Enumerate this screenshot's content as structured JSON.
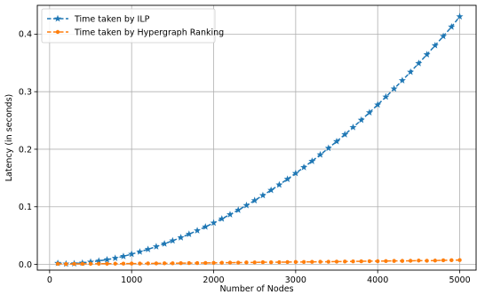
{
  "chart_data": {
    "type": "line",
    "title": "",
    "xlabel": "Number of Nodes",
    "ylabel": "Latency (in seconds)",
    "xlim": [
      -150,
      5200
    ],
    "ylim": [
      -0.01,
      0.45
    ],
    "xticks": [
      0,
      1000,
      2000,
      3000,
      4000,
      5000
    ],
    "yticks": [
      0.0,
      0.1,
      0.2,
      0.3,
      0.4
    ],
    "grid": true,
    "legend_position": "top-left",
    "x": [
      100,
      200,
      300,
      400,
      500,
      600,
      700,
      800,
      900,
      1000,
      1100,
      1200,
      1300,
      1400,
      1500,
      1600,
      1700,
      1800,
      1900,
      2000,
      2100,
      2200,
      2300,
      2400,
      2500,
      2600,
      2700,
      2800,
      2900,
      3000,
      3100,
      3200,
      3300,
      3400,
      3500,
      3600,
      3700,
      3800,
      3900,
      4000,
      4100,
      4200,
      4300,
      4400,
      4500,
      4600,
      4700,
      4800,
      4900,
      5000
    ],
    "series": [
      {
        "name": "Time taken by ILP",
        "color": "#1f77b4",
        "marker": "star",
        "values": [
          0.0021,
          0.001,
          0.0014,
          0.0025,
          0.0042,
          0.006,
          0.0082,
          0.0108,
          0.014,
          0.0178,
          0.0218,
          0.0262,
          0.0309,
          0.0358,
          0.0411,
          0.0466,
          0.0525,
          0.0587,
          0.0652,
          0.072,
          0.0791,
          0.0866,
          0.0944,
          0.1025,
          0.111,
          0.1198,
          0.1289,
          0.1383,
          0.1481,
          0.1582,
          0.1686,
          0.1794,
          0.1905,
          0.2019,
          0.2136,
          0.2257,
          0.2381,
          0.2508,
          0.2638,
          0.2773,
          0.291,
          0.3051,
          0.3195,
          0.3342,
          0.3493,
          0.3646,
          0.3803,
          0.3963,
          0.4126,
          0.4305
        ]
      },
      {
        "name": "Time taken by Hypergraph Ranking",
        "color": "#ff7f0e",
        "marker": "circle",
        "values": [
          0.001,
          0.0006,
          0.0008,
          0.0009,
          0.001,
          0.0011,
          0.0011,
          0.0012,
          0.0013,
          0.0014,
          0.0015,
          0.0016,
          0.0017,
          0.0018,
          0.0019,
          0.0021,
          0.0022,
          0.0023,
          0.0025,
          0.0026,
          0.0028,
          0.003,
          0.0031,
          0.0033,
          0.0034,
          0.0038,
          0.0036,
          0.0038,
          0.004,
          0.0041,
          0.0042,
          0.0043,
          0.0045,
          0.0046,
          0.0048,
          0.0049,
          0.0051,
          0.0053,
          0.0056,
          0.0055,
          0.0058,
          0.006,
          0.006,
          0.0062,
          0.0066,
          0.0063,
          0.0066,
          0.007,
          0.0072,
          0.0074
        ]
      }
    ]
  }
}
